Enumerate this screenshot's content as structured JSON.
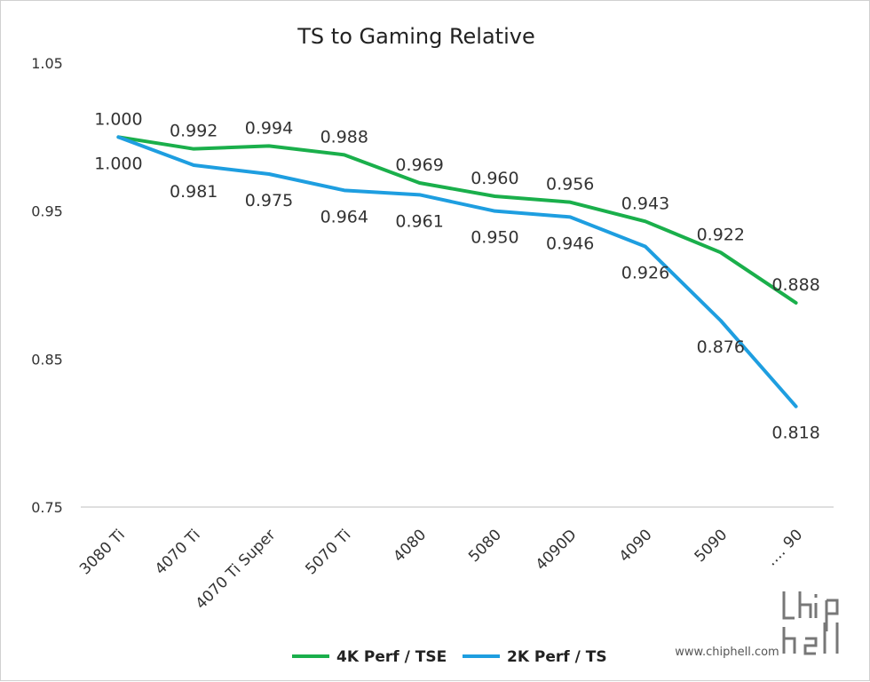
{
  "chart_data": {
    "type": "line",
    "title": "TS  to  Gaming  Relative",
    "categories": [
      "3080 Ti",
      "4070 Ti",
      "4070 Ti Super",
      "5070 Ti",
      "4080",
      "5080",
      "4090D",
      "4090",
      "5090",
      "…. 90"
    ],
    "ylim": [
      0.75,
      1.05
    ],
    "yticks": [
      1.05,
      0.95,
      0.85,
      0.75
    ],
    "grid": false,
    "legend_position": "bottom",
    "series": [
      {
        "name": "4K  Perf / TSE",
        "color": "#1aaf4b",
        "values": [
          1.0,
          0.992,
          0.994,
          0.988,
          0.969,
          0.96,
          0.956,
          0.943,
          0.922,
          0.888
        ],
        "labels": [
          "1.000",
          "0.992",
          "0.994",
          "0.988",
          "0.969",
          "0.960",
          "0.956",
          "0.943",
          "0.922",
          "0.888"
        ],
        "label_position": "above"
      },
      {
        "name": "2K  Perf / TS",
        "color": "#1e9ee0",
        "values": [
          1.0,
          0.981,
          0.975,
          0.964,
          0.961,
          0.95,
          0.946,
          0.926,
          0.876,
          0.818
        ],
        "labels": [
          "1.000",
          "0.981",
          "0.975",
          "0.964",
          "0.961",
          "0.950",
          "0.946",
          "0.926",
          "0.876",
          "0.818"
        ],
        "label_position": "below"
      }
    ]
  },
  "watermark": {
    "text": "www.chiphell.com",
    "logo": "chiphell"
  }
}
